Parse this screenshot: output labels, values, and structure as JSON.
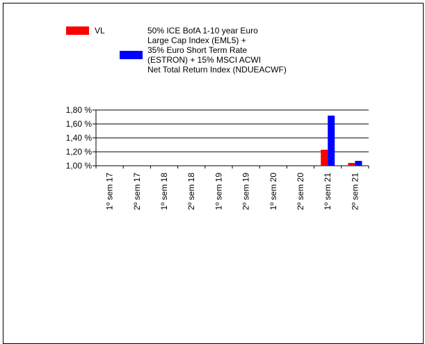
{
  "legend": {
    "vl_label": "VL",
    "benchmark_label": "50% ICE BofA 1-10 year Euro\nLarge Cap Index (EML5) +\n35% Euro Short Term Rate\n(ESTRON) + 15% MSCI ACWI\nNet Total Return Index (NDUEACWF)"
  },
  "chart_data": {
    "type": "bar",
    "categories": [
      "1º sem 17",
      "2º sem 17",
      "1º sem 18",
      "2º sem 18",
      "1º sem 19",
      "2º sem 19",
      "1º sem 20",
      "2º sem 20",
      "1º sem 21",
      "2º sem 21"
    ],
    "series": [
      {
        "name": "VL",
        "color": "#ff0000",
        "values": [
          null,
          null,
          null,
          null,
          null,
          null,
          null,
          null,
          1.23,
          1.04
        ]
      },
      {
        "name": "50% ICE BofA 1-10 year Euro Large Cap Index (EML5) + 35% Euro Short Term Rate (ESTRON) + 15% MSCI ACWI Net Total Return Index (NDUEACWF)",
        "color": "#0000ff",
        "values": [
          null,
          null,
          null,
          null,
          null,
          null,
          null,
          null,
          1.72,
          1.07
        ]
      }
    ],
    "yticks": [
      "1,00 %",
      "1,20 %",
      "1,40 %",
      "1,60 %",
      "1,80 %"
    ],
    "ylim": [
      1.0,
      1.8
    ],
    "grid": true
  }
}
